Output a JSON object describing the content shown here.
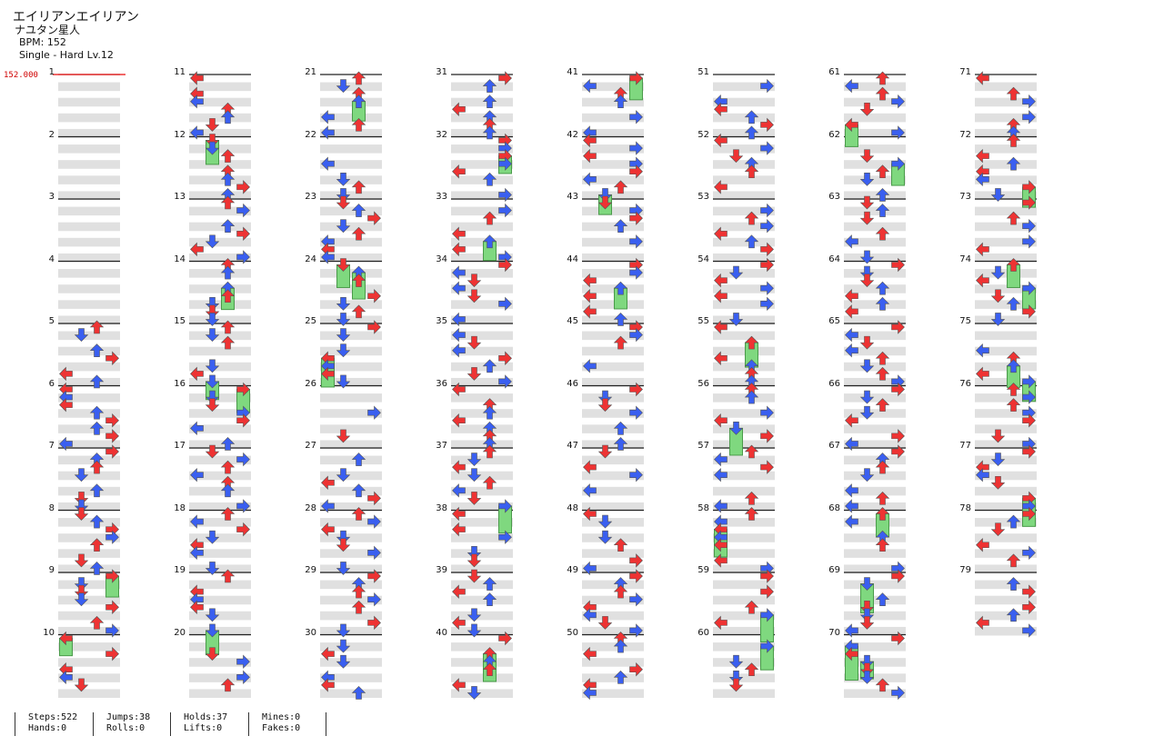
{
  "song": {
    "title": "エイリアンエイリアン",
    "artist": "ナユタン星人",
    "bpm_label": "BPM: 152",
    "difficulty_label": "Single - Hard  Lv.12",
    "bpm_marker": "152.000"
  },
  "colors": {
    "left_arrow": "#3a5ff0",
    "red_arrow": "#ee3333",
    "hold": "#7fd87f",
    "mine_yellow": "#f3d230",
    "band": "#e0e0e0"
  },
  "measures": [
    "1",
    "2",
    "3",
    "4",
    "5",
    "6",
    "7",
    "8",
    "9",
    "10",
    "11",
    "12",
    "13",
    "14",
    "15",
    "16",
    "17",
    "18",
    "19",
    "20",
    "21",
    "22",
    "23",
    "24",
    "25",
    "26",
    "27",
    "28",
    "29",
    "30",
    "31",
    "32",
    "33",
    "34",
    "35",
    "36",
    "37",
    "38",
    "39",
    "40",
    "41",
    "42",
    "43",
    "44",
    "45",
    "46",
    "47",
    "48",
    "49",
    "50",
    "51",
    "52",
    "53",
    "54",
    "55",
    "56",
    "57",
    "58",
    "59",
    "60",
    "61",
    "62",
    "63",
    "64",
    "65",
    "66",
    "67",
    "68",
    "69",
    "70",
    "71",
    "72",
    "73",
    "74",
    "75",
    "76",
    "77",
    "78",
    "79"
  ],
  "stats": {
    "steps": "Steps:522",
    "hands": "Hands:0",
    "jumps": "Jumps:38",
    "rolls": "Rolls:0",
    "holds": "Holds:37",
    "lifts": "Lifts:0",
    "mines": "Mines:0",
    "fakes": "Fakes:0"
  }
}
